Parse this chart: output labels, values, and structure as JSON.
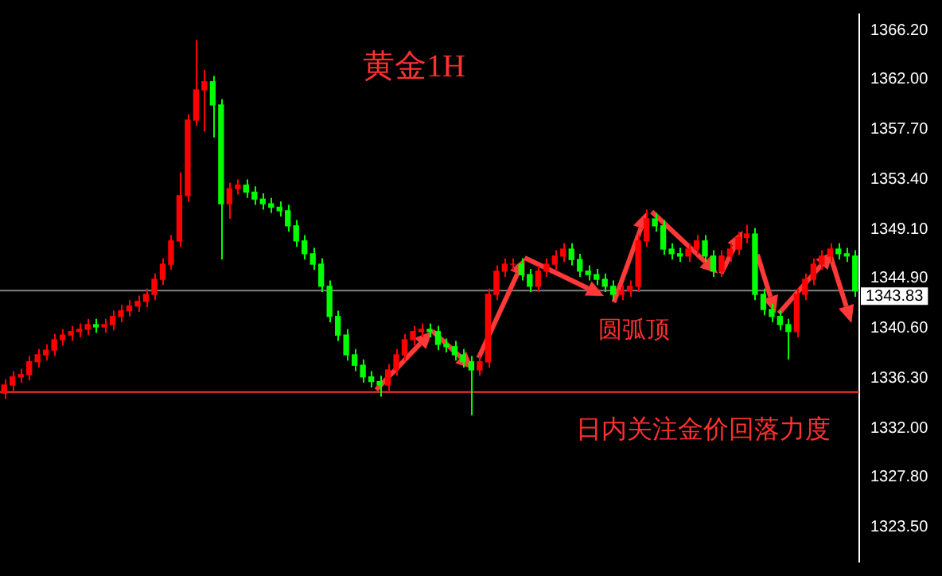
{
  "chart_data": {
    "type": "candlestick",
    "title": "黄金1H",
    "categories": [
      null,
      null,
      null,
      null,
      null,
      null,
      null,
      null,
      null,
      null,
      null,
      null,
      null,
      null,
      null,
      null,
      null,
      null,
      null,
      null,
      null,
      null,
      null,
      null,
      null,
      null,
      null,
      null,
      null,
      null,
      null,
      null,
      null,
      null,
      null,
      null,
      null,
      null,
      null,
      null,
      null,
      null,
      null,
      null,
      null,
      null,
      null,
      null,
      null,
      null,
      null,
      null,
      null,
      null,
      null,
      null,
      null,
      null,
      null,
      null,
      null,
      null,
      null,
      null,
      null,
      null,
      null,
      null,
      null,
      null,
      null,
      null,
      null,
      null,
      null,
      null,
      null,
      null,
      null,
      null,
      null,
      null,
      null,
      null,
      null,
      null,
      null,
      null,
      null,
      null,
      null,
      null,
      null,
      null,
      null,
      null,
      null,
      null,
      null,
      null,
      null,
      null,
      null
    ],
    "ohlc": [
      [
        1335.0,
        1336.2,
        1334.5,
        1335.7
      ],
      [
        1335.7,
        1336.9,
        1335.2,
        1336.4
      ],
      [
        1336.4,
        1337.1,
        1335.9,
        1336.6
      ],
      [
        1336.6,
        1338.2,
        1336.1,
        1337.7
      ],
      [
        1337.7,
        1338.8,
        1337.2,
        1338.3
      ],
      [
        1338.3,
        1339.2,
        1337.8,
        1338.7
      ],
      [
        1338.7,
        1340.1,
        1338.2,
        1339.6
      ],
      [
        1339.6,
        1340.5,
        1339.1,
        1340.0
      ],
      [
        1340.0,
        1340.8,
        1339.5,
        1340.3
      ],
      [
        1340.3,
        1341.0,
        1339.8,
        1340.5
      ],
      [
        1340.5,
        1341.4,
        1340.0,
        1340.9
      ],
      [
        1340.9,
        1341.4,
        1340.2,
        1340.7
      ],
      [
        1340.7,
        1341.4,
        1340.2,
        1340.9
      ],
      [
        1340.9,
        1342.1,
        1340.4,
        1341.6
      ],
      [
        1341.6,
        1342.6,
        1341.1,
        1342.1
      ],
      [
        1342.1,
        1343.0,
        1341.6,
        1342.5
      ],
      [
        1342.5,
        1343.4,
        1342.0,
        1342.9
      ],
      [
        1342.9,
        1344.0,
        1342.4,
        1343.5
      ],
      [
        1343.5,
        1345.3,
        1343.0,
        1344.8
      ],
      [
        1344.8,
        1346.6,
        1344.3,
        1346.1
      ],
      [
        1346.1,
        1348.6,
        1345.6,
        1348.1
      ],
      [
        1348.1,
        1354.0,
        1347.6,
        1352.0
      ],
      [
        1352.0,
        1359.0,
        1351.5,
        1358.5
      ],
      [
        1358.5,
        1365.4,
        1358.0,
        1361.1
      ],
      [
        1361.1,
        1362.8,
        1357.5,
        1361.8
      ],
      [
        1361.8,
        1362.3,
        1357.0,
        1359.8
      ],
      [
        1359.8,
        1360.3,
        1346.5,
        1351.3
      ],
      [
        1351.3,
        1353.1,
        1350.0,
        1352.6
      ],
      [
        1352.6,
        1353.4,
        1352.1,
        1352.9
      ],
      [
        1352.9,
        1353.4,
        1351.8,
        1352.3
      ],
      [
        1352.3,
        1352.8,
        1351.2,
        1351.7
      ],
      [
        1351.7,
        1352.2,
        1350.8,
        1351.3
      ],
      [
        1351.3,
        1351.8,
        1350.5,
        1351.0
      ],
      [
        1351.0,
        1351.5,
        1350.2,
        1350.7
      ],
      [
        1350.7,
        1351.2,
        1348.9,
        1349.4
      ],
      [
        1349.4,
        1349.9,
        1347.6,
        1348.1
      ],
      [
        1348.1,
        1348.6,
        1346.5,
        1347.0
      ],
      [
        1347.0,
        1347.5,
        1345.6,
        1346.1
      ],
      [
        1346.1,
        1346.6,
        1343.7,
        1344.2
      ],
      [
        1344.2,
        1344.7,
        1341.1,
        1341.6
      ],
      [
        1341.6,
        1342.1,
        1339.5,
        1340.0
      ],
      [
        1340.0,
        1340.5,
        1337.8,
        1338.3
      ],
      [
        1338.3,
        1338.8,
        1336.9,
        1337.4
      ],
      [
        1337.4,
        1337.9,
        1335.9,
        1336.4
      ],
      [
        1336.4,
        1336.9,
        1335.5,
        1336.0
      ],
      [
        1336.0,
        1336.5,
        1334.7,
        1335.7
      ],
      [
        1335.7,
        1337.5,
        1335.2,
        1337.0
      ],
      [
        1337.0,
        1338.8,
        1336.5,
        1338.3
      ],
      [
        1338.3,
        1340.1,
        1337.8,
        1339.6
      ],
      [
        1339.6,
        1340.8,
        1339.1,
        1340.3
      ],
      [
        1340.3,
        1341.0,
        1339.8,
        1340.5
      ],
      [
        1340.5,
        1341.0,
        1339.8,
        1340.3
      ],
      [
        1340.3,
        1340.8,
        1338.7,
        1339.2
      ],
      [
        1339.2,
        1339.7,
        1338.5,
        1339.0
      ],
      [
        1339.0,
        1339.5,
        1337.8,
        1338.3
      ],
      [
        1338.3,
        1338.8,
        1337.2,
        1337.7
      ],
      [
        1337.7,
        1338.2,
        1333.1,
        1337.0
      ],
      [
        1337.0,
        1338.2,
        1336.5,
        1337.7
      ],
      [
        1337.7,
        1344.0,
        1337.2,
        1343.5
      ],
      [
        1343.5,
        1346.0,
        1343.0,
        1345.5
      ],
      [
        1345.5,
        1346.6,
        1345.0,
        1346.1
      ],
      [
        1346.1,
        1346.6,
        1345.6,
        1346.1
      ],
      [
        1346.1,
        1346.6,
        1344.7,
        1345.2
      ],
      [
        1345.2,
        1345.7,
        1343.7,
        1344.2
      ],
      [
        1344.2,
        1346.0,
        1343.7,
        1345.5
      ],
      [
        1345.5,
        1346.6,
        1345.0,
        1346.1
      ],
      [
        1346.1,
        1347.3,
        1345.6,
        1346.8
      ],
      [
        1346.8,
        1347.9,
        1346.3,
        1347.4
      ],
      [
        1347.4,
        1347.9,
        1346.0,
        1346.5
      ],
      [
        1346.5,
        1347.0,
        1345.0,
        1345.5
      ],
      [
        1345.5,
        1346.0,
        1344.7,
        1345.2
      ],
      [
        1345.2,
        1345.7,
        1344.3,
        1344.8
      ],
      [
        1344.8,
        1345.3,
        1343.7,
        1344.2
      ],
      [
        1344.2,
        1344.7,
        1343.0,
        1343.5
      ],
      [
        1343.5,
        1344.3,
        1343.0,
        1343.8
      ],
      [
        1343.8,
        1344.7,
        1343.3,
        1344.2
      ],
      [
        1344.2,
        1348.6,
        1343.7,
        1348.1
      ],
      [
        1348.1,
        1350.8,
        1347.6,
        1350.0
      ],
      [
        1350.0,
        1350.5,
        1348.9,
        1349.4
      ],
      [
        1349.4,
        1349.9,
        1346.9,
        1347.4
      ],
      [
        1347.4,
        1347.9,
        1346.5,
        1347.0
      ],
      [
        1347.0,
        1347.5,
        1346.3,
        1346.8
      ],
      [
        1346.8,
        1347.9,
        1346.3,
        1347.4
      ],
      [
        1347.4,
        1348.6,
        1346.9,
        1348.1
      ],
      [
        1348.1,
        1348.6,
        1346.3,
        1346.8
      ],
      [
        1346.8,
        1347.3,
        1345.0,
        1345.5
      ],
      [
        1345.5,
        1347.3,
        1345.0,
        1346.8
      ],
      [
        1346.8,
        1347.9,
        1346.3,
        1347.4
      ],
      [
        1347.4,
        1348.9,
        1346.9,
        1348.4
      ],
      [
        1348.4,
        1349.5,
        1347.9,
        1348.7
      ],
      [
        1348.7,
        1349.2,
        1343.0,
        1343.5
      ],
      [
        1343.5,
        1344.0,
        1341.7,
        1342.2
      ],
      [
        1342.2,
        1342.7,
        1341.1,
        1341.6
      ],
      [
        1341.6,
        1342.1,
        1340.4,
        1340.9
      ],
      [
        1340.9,
        1341.4,
        1337.9,
        1340.3
      ],
      [
        1340.3,
        1344.0,
        1339.8,
        1343.5
      ],
      [
        1343.5,
        1345.3,
        1343.0,
        1344.8
      ],
      [
        1344.8,
        1346.6,
        1344.3,
        1346.1
      ],
      [
        1346.1,
        1347.3,
        1345.6,
        1346.8
      ],
      [
        1346.8,
        1347.9,
        1346.3,
        1347.4
      ],
      [
        1347.4,
        1347.9,
        1346.5,
        1347.0
      ],
      [
        1347.0,
        1347.5,
        1346.3,
        1346.8
      ],
      [
        1346.8,
        1347.3,
        1343.3,
        1343.8
      ]
    ],
    "colors": [
      "#ff0000",
      "#ff0000",
      "#ff0000",
      "#ff0000",
      "#ff0000",
      "#ff0000",
      "#ff0000",
      "#ff0000",
      "#ff0000",
      "#ff0000",
      "#ff0000",
      "#00ff00",
      "#ff0000",
      "#ff0000",
      "#ff0000",
      "#ff0000",
      "#ff0000",
      "#ff0000",
      "#ff0000",
      "#ff0000",
      "#ff0000",
      "#ff0000",
      "#ff0000",
      "#ff0000",
      "#ff0000",
      "#00ff00",
      "#00ff00",
      "#ff0000",
      "#ff0000",
      "#00ff00",
      "#00ff00",
      "#00ff00",
      "#00ff00",
      "#00ff00",
      "#00ff00",
      "#00ff00",
      "#00ff00",
      "#00ff00",
      "#00ff00",
      "#00ff00",
      "#00ff00",
      "#00ff00",
      "#00ff00",
      "#00ff00",
      "#00ff00",
      "#00ff00",
      "#ff0000",
      "#ff0000",
      "#ff0000",
      "#ff0000",
      "#ff0000",
      "#00ff00",
      "#00ff00",
      "#00ff00",
      "#00ff00",
      "#00ff00",
      "#00ff00",
      "#ff0000",
      "#ff0000",
      "#ff0000",
      "#ff0000",
      "#ff0000",
      "#00ff00",
      "#00ff00",
      "#ff0000",
      "#ff0000",
      "#ff0000",
      "#ff0000",
      "#00ff00",
      "#00ff00",
      "#00ff00",
      "#00ff00",
      "#00ff00",
      "#00ff00",
      "#ff0000",
      "#ff0000",
      "#ff0000",
      "#ff0000",
      "#00ff00",
      "#00ff00",
      "#00ff00",
      "#00ff00",
      "#ff0000",
      "#ff0000",
      "#00ff00",
      "#00ff00",
      "#ff0000",
      "#ff0000",
      "#ff0000",
      "#ff0000",
      "#00ff00",
      "#00ff00",
      "#00ff00",
      "#00ff00",
      "#00ff00",
      "#ff0000",
      "#ff0000",
      "#ff0000",
      "#ff0000",
      "#ff0000",
      "#00ff00",
      "#00ff00",
      "#00ff00"
    ],
    "ylim": [
      1320.5,
      1367.6
    ],
    "yticks": [
      {
        "value": 1366.2,
        "label": "1366.20"
      },
      {
        "value": 1362.0,
        "label": "1362.00"
      },
      {
        "value": 1357.7,
        "label": "1357.70"
      },
      {
        "value": 1353.4,
        "label": "1353.40"
      },
      {
        "value": 1349.1,
        "label": "1349.10"
      },
      {
        "value": 1344.9,
        "label": "1344.90"
      },
      {
        "value": 1340.6,
        "label": "1340.60"
      },
      {
        "value": 1336.3,
        "label": "1336.30"
      },
      {
        "value": 1332.0,
        "label": "1332.00"
      },
      {
        "value": 1327.8,
        "label": "1327.80"
      },
      {
        "value": 1323.5,
        "label": "1323.50"
      }
    ],
    "ref_lines": [
      {
        "axis": "y",
        "value": 1343.83,
        "label": "1343.83",
        "color": "#808080"
      },
      {
        "axis": "y",
        "value": 1335.1,
        "color": "#ff3030"
      }
    ],
    "annotations": [
      "圆弧顶",
      "日内关注金价回落力度"
    ],
    "grid": false,
    "legend": false,
    "tick_labels": "y"
  }
}
